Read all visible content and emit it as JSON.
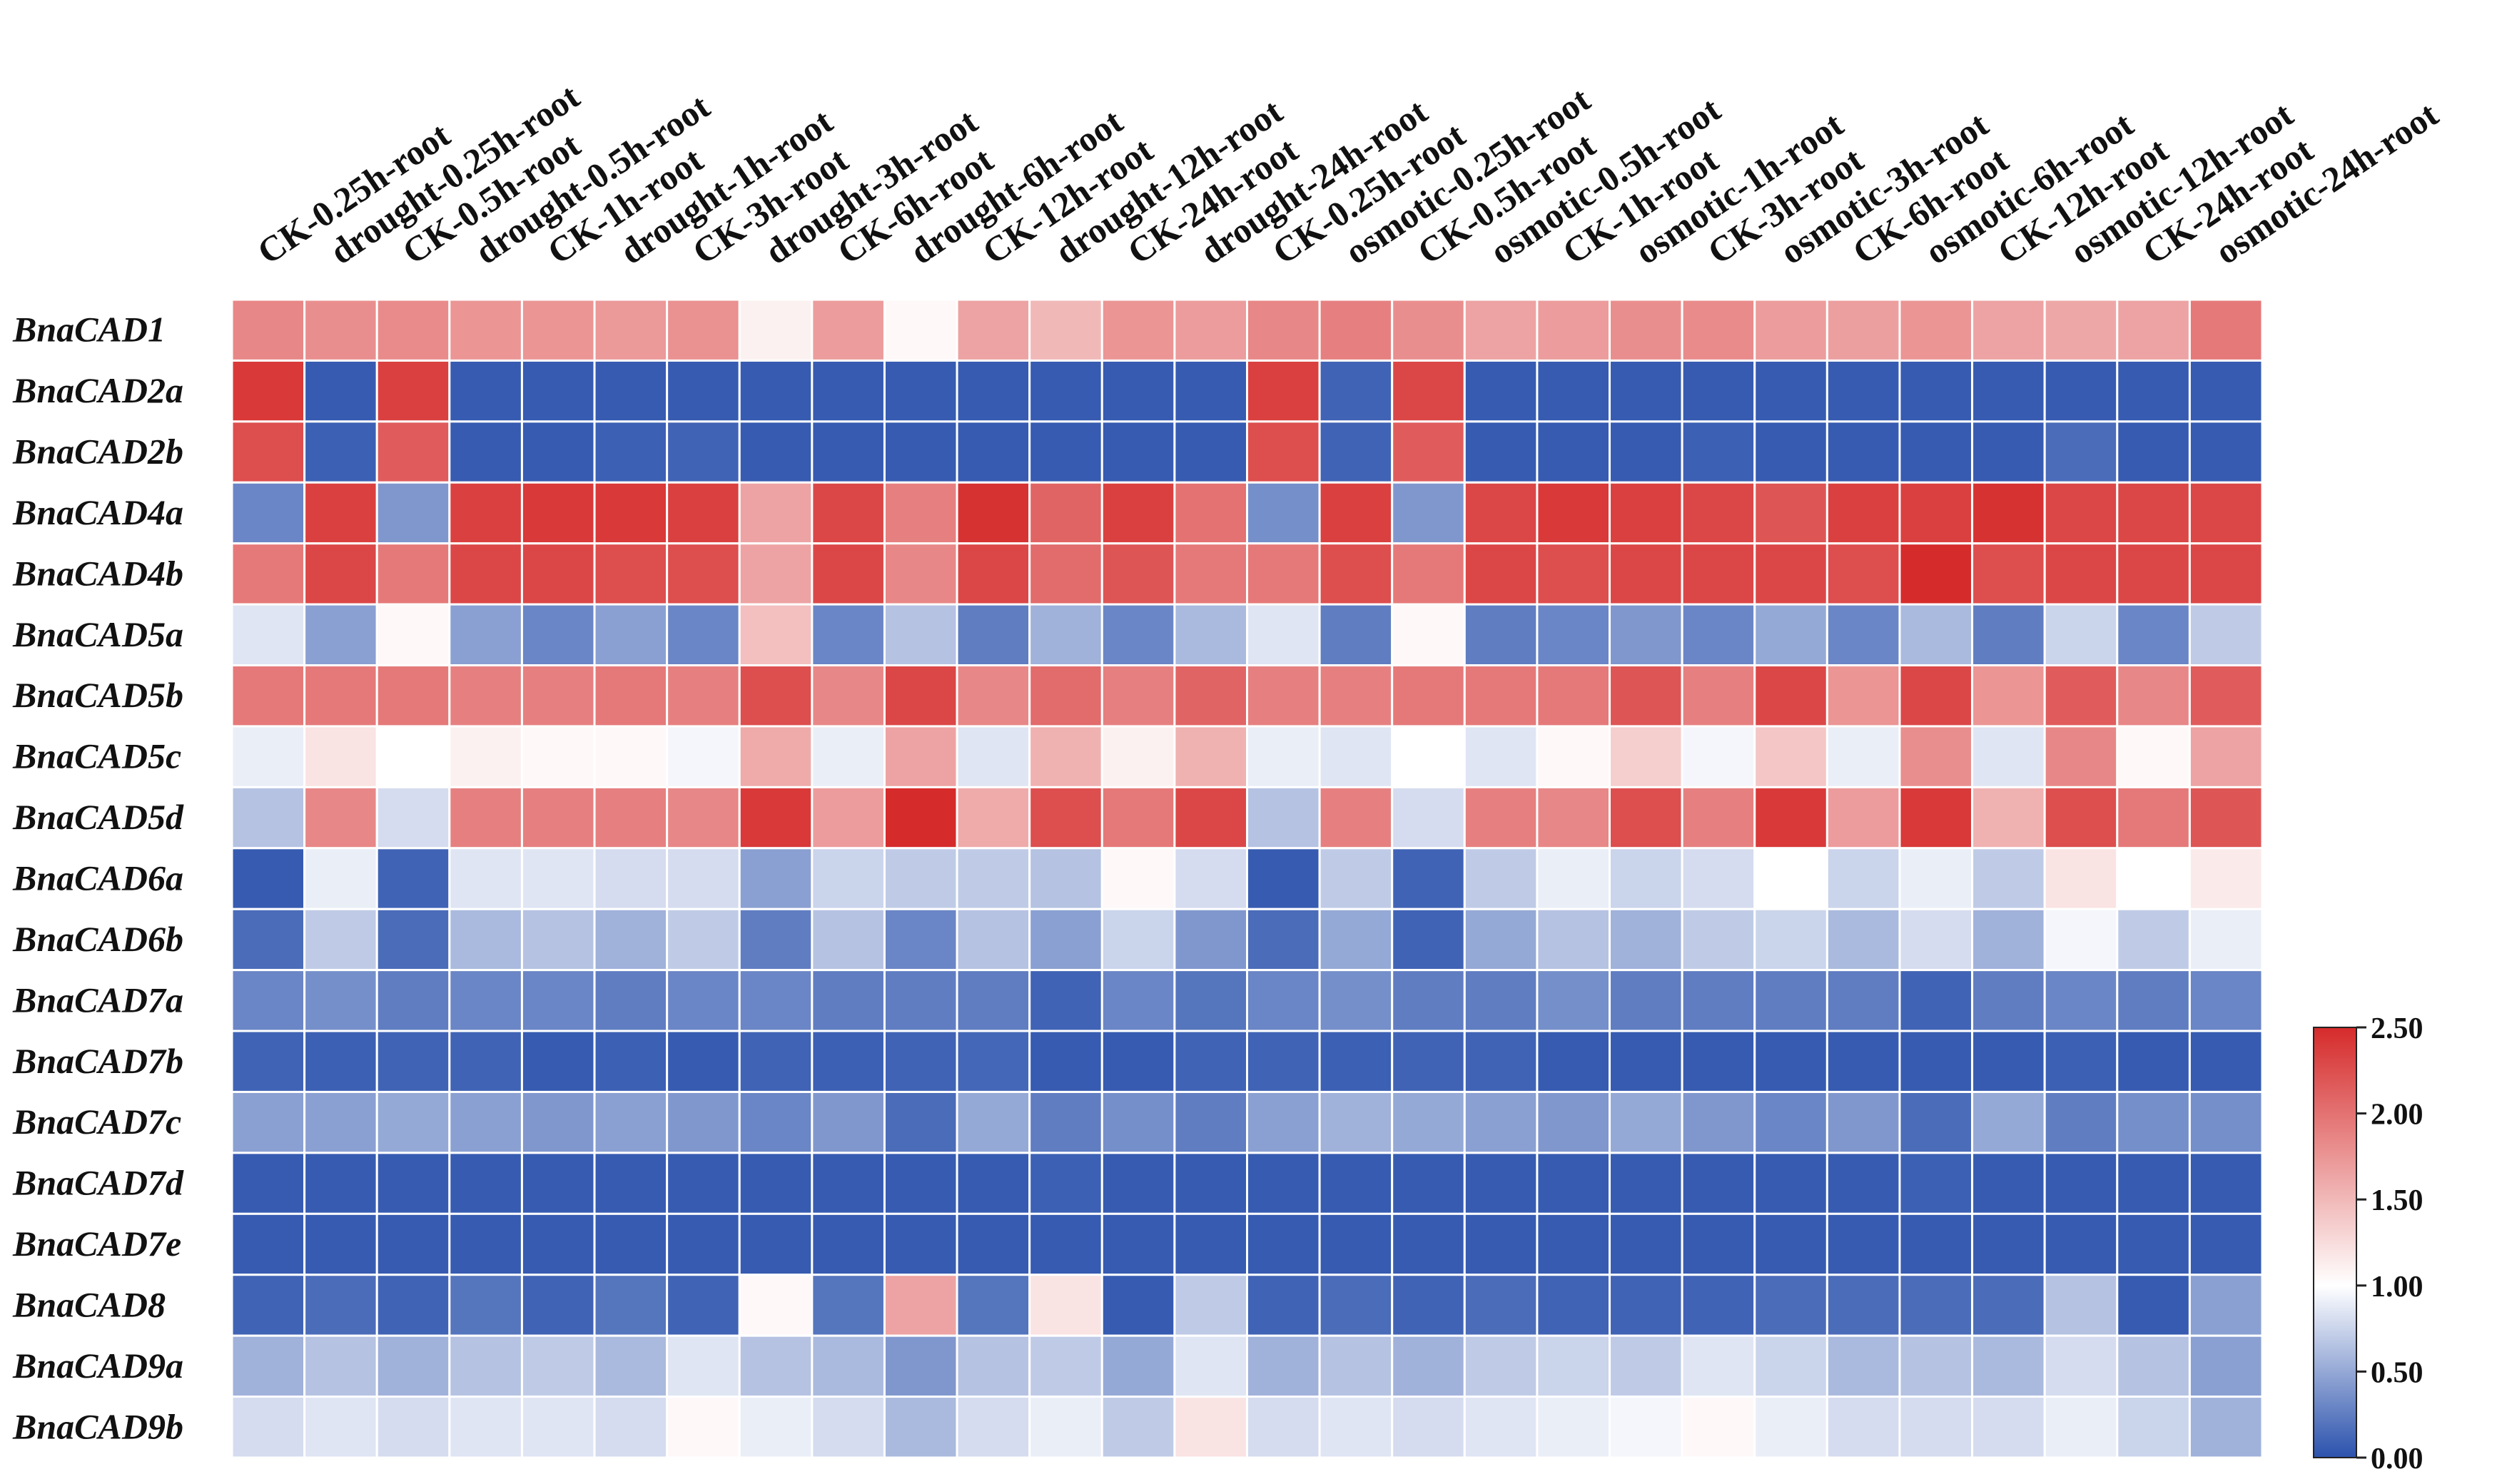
{
  "chart_data": {
    "type": "heatmap",
    "title": "",
    "columns": [
      "CK-0.25h-root",
      "drought-0.25h-root",
      "CK-0.5h-root",
      "drought-0.5h-root",
      "CK-1h-root",
      "drought-1h-root",
      "CK-3h-root",
      "drought-3h-root",
      "CK-6h-root",
      "drought-6h-root",
      "CK-12h-root",
      "drought-12h-root",
      "CK-24h-root",
      "drought-24h-root",
      "CK-0.25h-root",
      "osmotic-0.25h-root",
      "CK-0.5h-root",
      "osmotic-0.5h-root",
      "CK-1h-root",
      "osmotic-1h-root",
      "CK-3h-root",
      "osmotic-3h-root",
      "CK-6h-root",
      "osmotic-6h-root",
      "CK-12h-root",
      "osmotic-12h-root",
      "CK-24h-root",
      "osmotic-24h-root"
    ],
    "rows": [
      "BnaCAD1",
      "BnaCAD2a",
      "BnaCAD2b",
      "BnaCAD4a",
      "BnaCAD4b",
      "BnaCAD5a",
      "BnaCAD5b",
      "BnaCAD5c",
      "BnaCAD5d",
      "BnaCAD6a",
      "BnaCAD6b",
      "BnaCAD7a",
      "BnaCAD7b",
      "BnaCAD7c",
      "BnaCAD7d",
      "BnaCAD7e",
      "BnaCAD8",
      "BnaCAD9a",
      "BnaCAD9b"
    ],
    "values": [
      [
        1.85,
        1.8,
        1.82,
        1.75,
        1.75,
        1.72,
        1.78,
        1.1,
        1.7,
        1.05,
        1.65,
        1.5,
        1.75,
        1.7,
        1.85,
        1.9,
        1.8,
        1.65,
        1.7,
        1.8,
        1.82,
        1.7,
        1.68,
        1.75,
        1.65,
        1.62,
        1.65,
        1.95
      ],
      [
        2.4,
        0.05,
        2.35,
        0.05,
        0.05,
        0.05,
        0.05,
        0.05,
        0.05,
        0.05,
        0.05,
        0.05,
        0.05,
        0.05,
        2.35,
        0.1,
        2.3,
        0.05,
        0.05,
        0.05,
        0.05,
        0.05,
        0.05,
        0.05,
        0.05,
        0.05,
        0.05,
        0.05
      ],
      [
        2.25,
        0.08,
        2.15,
        0.05,
        0.05,
        0.08,
        0.1,
        0.05,
        0.05,
        0.05,
        0.05,
        0.05,
        0.05,
        0.05,
        2.25,
        0.1,
        2.15,
        0.05,
        0.05,
        0.05,
        0.08,
        0.05,
        0.05,
        0.05,
        0.05,
        0.15,
        0.05,
        0.05
      ],
      [
        0.3,
        2.35,
        0.4,
        2.35,
        2.4,
        2.4,
        2.35,
        1.65,
        2.3,
        1.9,
        2.45,
        2.1,
        2.35,
        2.0,
        0.35,
        2.35,
        0.4,
        2.3,
        2.4,
        2.35,
        2.3,
        2.2,
        2.35,
        2.35,
        2.45,
        2.3,
        2.3,
        2.3
      ],
      [
        1.95,
        2.3,
        1.95,
        2.3,
        2.3,
        2.25,
        2.25,
        1.65,
        2.3,
        1.85,
        2.3,
        2.05,
        2.2,
        1.95,
        1.95,
        2.25,
        1.95,
        2.3,
        2.25,
        2.3,
        2.3,
        2.3,
        2.25,
        2.5,
        2.25,
        2.3,
        2.3,
        2.3
      ],
      [
        0.85,
        0.45,
        1.05,
        0.45,
        0.3,
        0.45,
        0.3,
        1.45,
        0.3,
        0.65,
        0.25,
        0.55,
        0.3,
        0.6,
        0.85,
        0.25,
        1.05,
        0.25,
        0.3,
        0.4,
        0.3,
        0.5,
        0.3,
        0.6,
        0.25,
        0.75,
        0.3,
        0.7
      ],
      [
        1.95,
        1.95,
        1.95,
        1.9,
        1.9,
        1.95,
        1.9,
        2.25,
        1.85,
        2.3,
        1.85,
        2.05,
        1.9,
        2.1,
        1.9,
        1.9,
        1.95,
        1.95,
        1.95,
        2.2,
        1.9,
        2.3,
        1.75,
        2.3,
        1.75,
        2.15,
        1.85,
        2.15
      ],
      [
        0.9,
        1.2,
        1.0,
        1.1,
        1.05,
        1.05,
        0.95,
        1.6,
        0.9,
        1.65,
        0.85,
        1.55,
        1.1,
        1.55,
        0.9,
        0.85,
        1.0,
        0.85,
        1.05,
        1.35,
        0.95,
        1.4,
        0.9,
        1.8,
        0.85,
        1.85,
        1.05,
        1.65
      ],
      [
        0.65,
        1.85,
        0.8,
        1.9,
        1.9,
        1.9,
        1.85,
        2.4,
        1.7,
        2.5,
        1.6,
        2.25,
        1.95,
        2.3,
        0.65,
        1.9,
        0.8,
        1.9,
        1.85,
        2.25,
        1.9,
        2.4,
        1.7,
        2.4,
        1.55,
        2.25,
        1.95,
        2.2
      ],
      [
        0.05,
        0.9,
        0.1,
        0.85,
        0.85,
        0.8,
        0.8,
        0.45,
        0.75,
        0.7,
        0.7,
        0.65,
        1.05,
        0.8,
        0.05,
        0.7,
        0.1,
        0.7,
        0.9,
        0.75,
        0.8,
        1.0,
        0.75,
        0.9,
        0.7,
        1.2,
        1.0,
        1.15
      ],
      [
        0.15,
        0.7,
        0.15,
        0.6,
        0.65,
        0.55,
        0.7,
        0.25,
        0.65,
        0.3,
        0.65,
        0.45,
        0.75,
        0.4,
        0.15,
        0.5,
        0.1,
        0.5,
        0.65,
        0.55,
        0.7,
        0.75,
        0.6,
        0.8,
        0.55,
        0.95,
        0.7,
        0.9
      ],
      [
        0.3,
        0.35,
        0.25,
        0.3,
        0.3,
        0.25,
        0.3,
        0.3,
        0.25,
        0.25,
        0.25,
        0.1,
        0.3,
        0.2,
        0.3,
        0.35,
        0.25,
        0.25,
        0.35,
        0.25,
        0.25,
        0.25,
        0.25,
        0.1,
        0.25,
        0.3,
        0.25,
        0.3
      ],
      [
        0.1,
        0.08,
        0.1,
        0.1,
        0.05,
        0.08,
        0.05,
        0.1,
        0.08,
        0.1,
        0.12,
        0.05,
        0.05,
        0.1,
        0.1,
        0.08,
        0.1,
        0.1,
        0.05,
        0.05,
        0.05,
        0.05,
        0.05,
        0.05,
        0.05,
        0.08,
        0.05,
        0.05
      ],
      [
        0.45,
        0.45,
        0.5,
        0.45,
        0.4,
        0.45,
        0.4,
        0.3,
        0.4,
        0.15,
        0.5,
        0.25,
        0.35,
        0.25,
        0.45,
        0.55,
        0.5,
        0.45,
        0.4,
        0.5,
        0.4,
        0.3,
        0.4,
        0.15,
        0.5,
        0.25,
        0.35,
        0.35
      ],
      [
        0.05,
        0.05,
        0.05,
        0.05,
        0.05,
        0.05,
        0.05,
        0.05,
        0.05,
        0.05,
        0.05,
        0.08,
        0.05,
        0.05,
        0.05,
        0.05,
        0.05,
        0.05,
        0.05,
        0.05,
        0.05,
        0.05,
        0.05,
        0.08,
        0.05,
        0.05,
        0.05,
        0.05
      ],
      [
        0.05,
        0.05,
        0.05,
        0.05,
        0.05,
        0.05,
        0.05,
        0.05,
        0.05,
        0.05,
        0.05,
        0.05,
        0.05,
        0.05,
        0.05,
        0.05,
        0.05,
        0.05,
        0.05,
        0.05,
        0.05,
        0.05,
        0.05,
        0.05,
        0.05,
        0.05,
        0.05,
        0.05
      ],
      [
        0.1,
        0.15,
        0.1,
        0.2,
        0.1,
        0.2,
        0.1,
        1.05,
        0.2,
        1.65,
        0.2,
        1.2,
        0.05,
        0.7,
        0.1,
        0.15,
        0.1,
        0.15,
        0.1,
        0.1,
        0.1,
        0.15,
        0.15,
        0.15,
        0.15,
        0.65,
        0.05,
        0.45
      ],
      [
        0.55,
        0.65,
        0.55,
        0.65,
        0.7,
        0.6,
        0.85,
        0.65,
        0.6,
        0.4,
        0.65,
        0.7,
        0.5,
        0.85,
        0.55,
        0.65,
        0.55,
        0.7,
        0.75,
        0.7,
        0.85,
        0.75,
        0.6,
        0.65,
        0.6,
        0.8,
        0.65,
        0.45
      ],
      [
        0.8,
        0.85,
        0.8,
        0.85,
        0.85,
        0.8,
        1.05,
        0.9,
        0.8,
        0.6,
        0.8,
        0.9,
        0.7,
        1.2,
        0.8,
        0.85,
        0.8,
        0.85,
        0.9,
        0.95,
        1.05,
        0.9,
        0.8,
        0.8,
        0.8,
        0.9,
        0.75,
        0.55
      ]
    ],
    "colorbar": {
      "min": 0.0,
      "max": 2.5,
      "tick_values": [
        0,
        0.5,
        1.0,
        1.5,
        2.0,
        2.5
      ],
      "tick_labels": [
        "0.00",
        "0.50",
        "1.00",
        "1.50",
        "2.00",
        "2.50"
      ],
      "colors": [
        "#2b52ad",
        "#ffffff",
        "#d62b2b"
      ]
    }
  }
}
